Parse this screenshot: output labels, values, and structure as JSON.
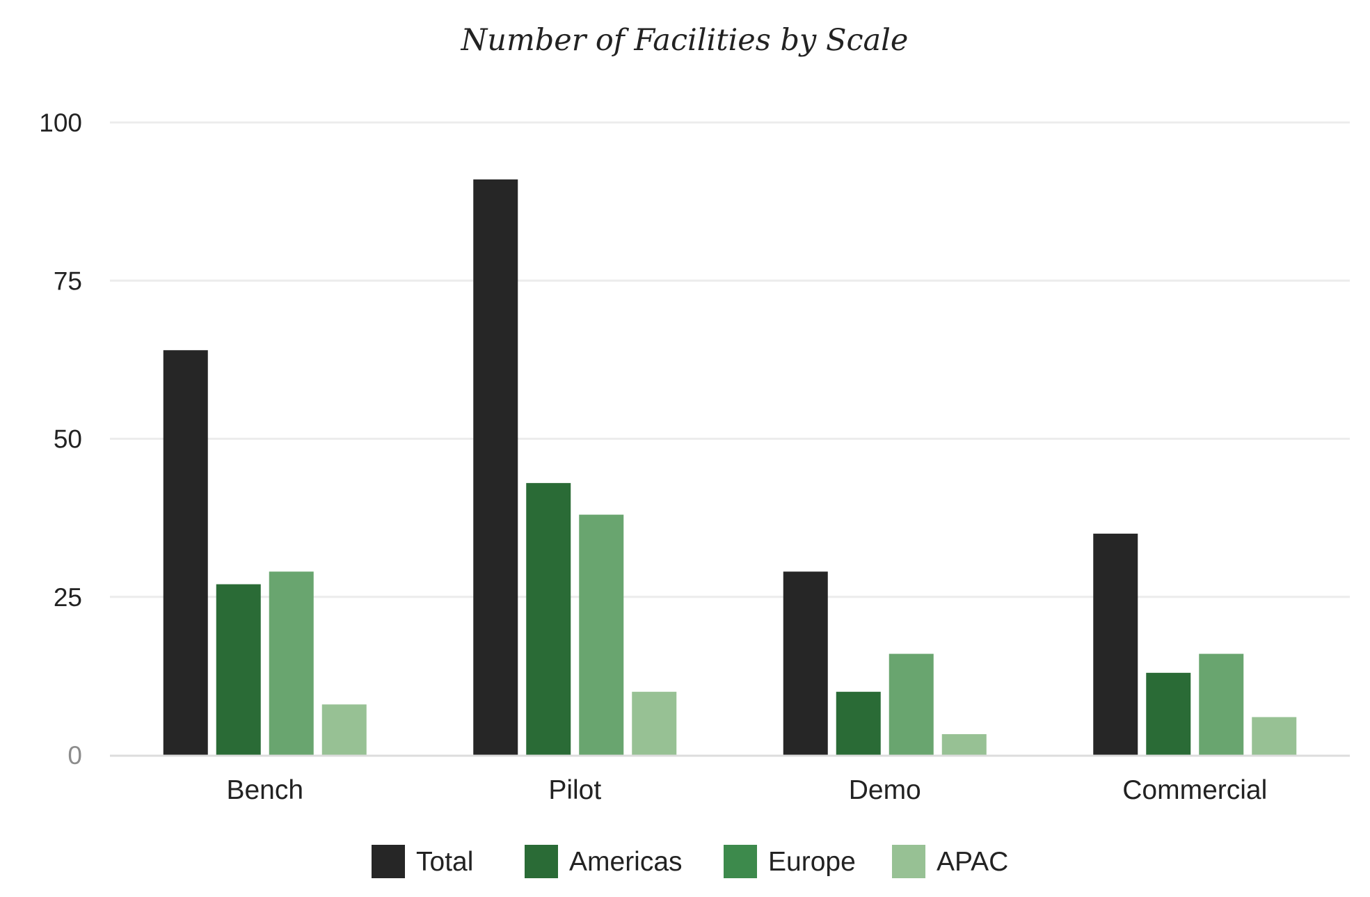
{
  "chart_data": {
    "type": "bar",
    "title": "Number of Facilities by Scale",
    "xlabel": "",
    "ylabel": "",
    "categories": [
      "Bench",
      "Pilot",
      "Demo",
      "Commercial"
    ],
    "series": [
      {
        "name": "Total",
        "color": "#262626",
        "values": [
          64,
          91,
          29,
          35
        ]
      },
      {
        "name": "Americas",
        "color": "#2a6b36",
        "values": [
          27,
          43,
          10,
          13
        ]
      },
      {
        "name": "Europe",
        "color": "#69a56f",
        "values": [
          29,
          38,
          16,
          16
        ]
      },
      {
        "name": "APAC",
        "color": "#97c194",
        "values": [
          8,
          10,
          3.3,
          6
        ]
      }
    ],
    "legend_colors": [
      "#262626",
      "#2a6b36",
      "#3d8a4c",
      "#97c194"
    ],
    "ylim": [
      0,
      100
    ],
    "yticks": [
      0,
      25,
      50,
      75,
      100
    ],
    "grid": true,
    "legend_position": "bottom-center"
  }
}
